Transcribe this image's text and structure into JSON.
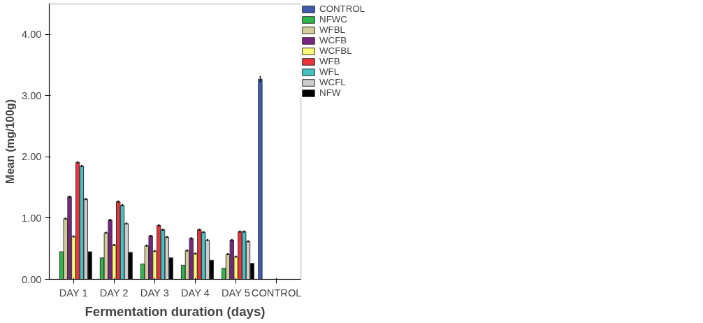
{
  "chart_data": {
    "type": "bar",
    "xlabel": "Fermentation duration (days)",
    "ylabel": "Mean (mg/100g)",
    "categories": [
      "DAY 1",
      "DAY 2",
      "DAY 3",
      "DAY 4",
      "DAY 5",
      "CONTROL"
    ],
    "series": [
      {
        "name": "CONTROL",
        "color": "#3f5bb0",
        "values": [
          null,
          null,
          null,
          null,
          null,
          3.27
        ],
        "errors": [
          null,
          null,
          null,
          null,
          null,
          0.04
        ]
      },
      {
        "name": "NFWC",
        "color": "#2eb84b",
        "values": [
          0.45,
          0.35,
          0.25,
          0.23,
          0.18,
          null
        ]
      },
      {
        "name": "WFBL",
        "color": "#d4cf99",
        "values": [
          0.99,
          0.76,
          0.55,
          0.47,
          0.41,
          null
        ],
        "errors": [
          0.01,
          0.01,
          0.01,
          0.01,
          0.01,
          null
        ]
      },
      {
        "name": "WCFB",
        "color": "#78257f",
        "values": [
          1.35,
          0.97,
          0.71,
          0.67,
          0.64,
          null
        ],
        "errors": [
          0.01,
          0.01,
          0.01,
          0.01,
          0.01,
          null
        ]
      },
      {
        "name": "WCFBL",
        "color": "#fbf877",
        "values": [
          0.7,
          0.56,
          0.46,
          0.42,
          0.37,
          null
        ],
        "errors": [
          0.01,
          0.01,
          0.01,
          0.01,
          0.01,
          null
        ]
      },
      {
        "name": "WFB",
        "color": "#ec323a",
        "values": [
          1.91,
          1.27,
          0.88,
          0.81,
          0.78,
          null
        ],
        "errors": [
          0.01,
          0.01,
          0.01,
          0.01,
          0.01,
          null
        ]
      },
      {
        "name": "WFL",
        "color": "#44c1c3",
        "values": [
          1.85,
          1.21,
          0.81,
          0.77,
          0.78,
          null
        ],
        "errors": [
          0.01,
          0.01,
          0.01,
          0.01,
          0.01,
          null
        ]
      },
      {
        "name": "WCFL",
        "color": "#cdcdcd",
        "values": [
          1.31,
          0.91,
          0.69,
          0.64,
          0.62,
          null
        ],
        "errors": [
          0.01,
          0.01,
          0.01,
          0.01,
          0.01,
          null
        ]
      },
      {
        "name": "NFW",
        "color": "#000000",
        "values": [
          0.45,
          0.44,
          0.35,
          0.31,
          0.26,
          null
        ]
      }
    ],
    "ylim": [
      0,
      4.5
    ],
    "yticks": [
      {
        "value": 0,
        "label": "0.00"
      },
      {
        "value": 1,
        "label": "1.00"
      },
      {
        "value": 2,
        "label": "2.00"
      },
      {
        "value": 3,
        "label": "3.00"
      },
      {
        "value": 4,
        "label": "4.00"
      }
    ],
    "grid": false,
    "legend": "right"
  }
}
